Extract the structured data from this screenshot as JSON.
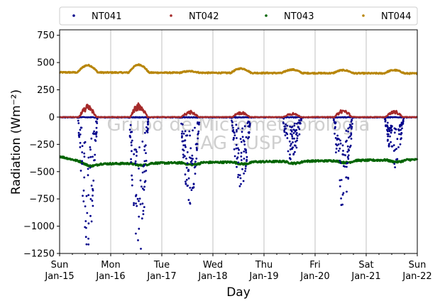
{
  "chart_data": {
    "type": "scatter",
    "ylabel": "Radiation (Wm⁻²)",
    "xlabel": "Day",
    "ylim": [
      -1250,
      800
    ],
    "xlim": [
      0,
      7
    ],
    "yticks": [
      -1250,
      -1000,
      -750,
      -500,
      -250,
      0,
      250,
      500,
      750
    ],
    "ytick_labels": [
      "−1250",
      "−1000",
      "−750",
      "−500",
      "−250",
      "0",
      "250",
      "500",
      "750"
    ],
    "xticks": [
      {
        "x": 0,
        "line1": "Sun",
        "line2": "Jan-15"
      },
      {
        "x": 1,
        "line1": "Mon",
        "line2": "Jan-16"
      },
      {
        "x": 2,
        "line1": "Tue",
        "line2": "Jan-17"
      },
      {
        "x": 3,
        "line1": "Wed",
        "line2": "Jan-18"
      },
      {
        "x": 4,
        "line1": "Thu",
        "line2": "Jan-19"
      },
      {
        "x": 5,
        "line1": "Fri",
        "line2": "Jan-20"
      },
      {
        "x": 6,
        "line1": "Sat",
        "line2": "Jan-21"
      },
      {
        "x": 7,
        "line1": "Sun",
        "line2": "Jan-22"
      }
    ],
    "grid": "vertical",
    "legend_placement": "top, above plot",
    "watermark": [
      "Grupo de Micrometeorologia",
      "IAG - USP"
    ],
    "series": [
      {
        "name": "NT041",
        "color": "#00008b",
        "baseline": 0,
        "day_peaks": [
          -1180,
          -1270,
          -760,
          -630,
          -400,
          -820,
          -450
        ]
      },
      {
        "name": "NT042",
        "color": "#a52a2a",
        "baseline": 0,
        "day_peaks": [
          110,
          120,
          55,
          50,
          40,
          70,
          60
        ]
      },
      {
        "name": "NT043",
        "color": "#006400",
        "start": -360,
        "low": -430,
        "end": -390,
        "range": [
          -440,
          -350
        ]
      },
      {
        "name": "NT044",
        "color": "#b8860b",
        "start": 410,
        "day_peaks": [
          475,
          480,
          420,
          445,
          435,
          430,
          430
        ],
        "end": 400,
        "range": [
          390,
          485
        ]
      }
    ]
  }
}
